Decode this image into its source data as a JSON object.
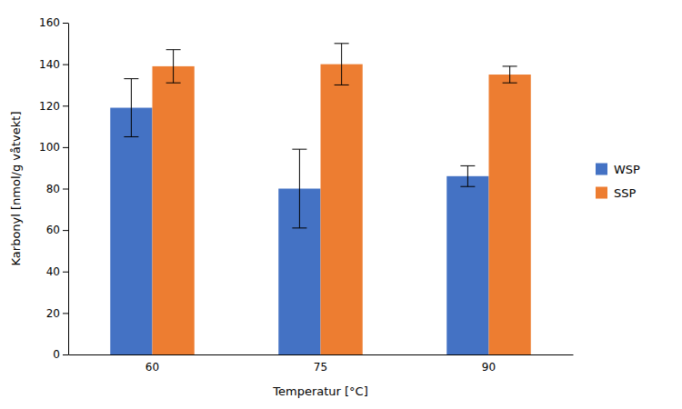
{
  "chart_data": {
    "type": "bar",
    "categories": [
      "60",
      "75",
      "90"
    ],
    "series": [
      {
        "name": "WSP",
        "color": "#4472C4",
        "values": [
          119,
          80,
          86
        ],
        "errors": [
          14,
          19,
          5
        ]
      },
      {
        "name": "SSP",
        "color": "#ED7D31",
        "values": [
          139,
          140,
          135
        ],
        "errors": [
          8,
          10,
          4
        ]
      }
    ],
    "xlabel": "Temperatur [°C]",
    "ylabel": "Karbonyl [nmol/g våtvekt]",
    "ylim": [
      0,
      160
    ],
    "yticks": [
      0,
      20,
      40,
      60,
      80,
      100,
      120,
      140,
      160
    ],
    "grid": false,
    "legend": "right"
  }
}
